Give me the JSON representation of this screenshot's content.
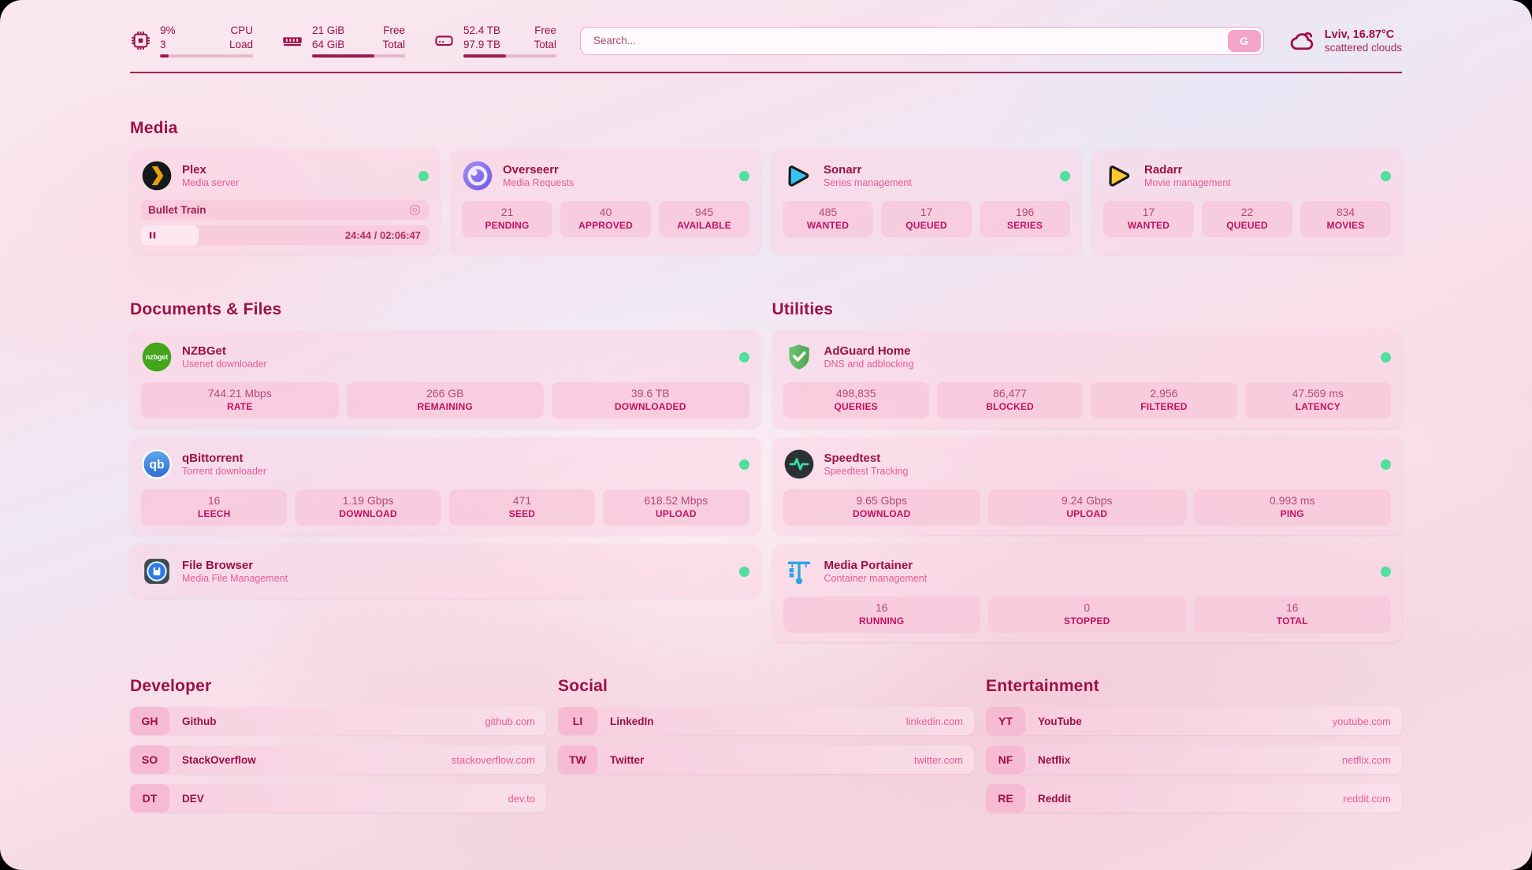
{
  "theme": {
    "accent_maroon": "#9b1048",
    "accent_pink": "#ea5c95",
    "status_online_green": "#4fdf9f",
    "card_pink": "#f9d6e5",
    "tile_pink": "#f7c6da"
  },
  "topbar": {
    "cpu": {
      "value_primary": "9%",
      "value_secondary": "3",
      "label_primary": "CPU",
      "label_secondary": "Load",
      "progress_pct": 9
    },
    "memory": {
      "value_primary": "21 GiB",
      "value_secondary": "64 GiB",
      "label_primary": "Free",
      "label_secondary": "Total",
      "progress_pct": 67
    },
    "disk": {
      "value_primary": "52.4 TB",
      "value_secondary": "97.9 TB",
      "label_primary": "Free",
      "label_secondary": "Total",
      "progress_pct": 46
    },
    "search": {
      "placeholder": "Search...",
      "engine_button": "G"
    },
    "weather": {
      "location_temp": "Lviv, 16.87°C",
      "condition": "scattered clouds"
    }
  },
  "sections": {
    "media": {
      "title": "Media",
      "cards": {
        "plex": {
          "name": "Plex",
          "subtitle": "Media server",
          "status": "online",
          "now_playing": {
            "title": "Bullet Train",
            "time": "24:44 / 02:06:47",
            "progress_pct": 20
          }
        },
        "overseerr": {
          "name": "Overseerr",
          "subtitle": "Media Requests",
          "status": "online",
          "stats": [
            {
              "value": "21",
              "label": "PENDING"
            },
            {
              "value": "40",
              "label": "APPROVED"
            },
            {
              "value": "945",
              "label": "AVAILABLE"
            }
          ]
        },
        "sonarr": {
          "name": "Sonarr",
          "subtitle": "Series management",
          "status": "online",
          "stats": [
            {
              "value": "485",
              "label": "WANTED"
            },
            {
              "value": "17",
              "label": "QUEUED"
            },
            {
              "value": "196",
              "label": "SERIES"
            }
          ]
        },
        "radarr": {
          "name": "Radarr",
          "subtitle": "Movie management",
          "status": "online",
          "stats": [
            {
              "value": "17",
              "label": "WANTED"
            },
            {
              "value": "22",
              "label": "QUEUED"
            },
            {
              "value": "834",
              "label": "MOVIES"
            }
          ]
        }
      }
    },
    "documents": {
      "title": "Documents & Files",
      "cards": {
        "nzbget": {
          "name": "NZBGet",
          "subtitle": "Usenet downloader",
          "status": "online",
          "stats": [
            {
              "value": "744.21 Mbps",
              "label": "RATE"
            },
            {
              "value": "266 GB",
              "label": "REMAINING"
            },
            {
              "value": "39.6 TB",
              "label": "DOWNLOADED"
            }
          ]
        },
        "qbittorrent": {
          "name": "qBittorrent",
          "subtitle": "Torrent downloader",
          "status": "online",
          "stats": [
            {
              "value": "16",
              "label": "LEECH"
            },
            {
              "value": "1.19 Gbps",
              "label": "DOWNLOAD"
            },
            {
              "value": "471",
              "label": "SEED"
            },
            {
              "value": "618.52 Mbps",
              "label": "UPLOAD"
            }
          ]
        },
        "filebrowser": {
          "name": "File Browser",
          "subtitle": "Media File Management",
          "status": "online"
        }
      }
    },
    "utilities": {
      "title": "Utilities",
      "cards": {
        "adguard": {
          "name": "AdGuard Home",
          "subtitle": "DNS and adblocking",
          "status": "online",
          "stats": [
            {
              "value": "498,835",
              "label": "QUERIES"
            },
            {
              "value": "86,477",
              "label": "BLOCKED"
            },
            {
              "value": "2,956",
              "label": "FILTERED"
            },
            {
              "value": "47.569 ms",
              "label": "LATENCY"
            }
          ]
        },
        "speedtest": {
          "name": "Speedtest",
          "subtitle": "Speedtest Tracking",
          "status": "online",
          "stats": [
            {
              "value": "9.65 Gbps",
              "label": "DOWNLOAD"
            },
            {
              "value": "9.24 Gbps",
              "label": "UPLOAD"
            },
            {
              "value": "0.993 ms",
              "label": "PING"
            }
          ]
        },
        "portainer": {
          "name": "Media Portainer",
          "subtitle": "Container management",
          "status": "online",
          "stats": [
            {
              "value": "16",
              "label": "RUNNING"
            },
            {
              "value": "0",
              "label": "STOPPED"
            },
            {
              "value": "16",
              "label": "TOTAL"
            }
          ]
        }
      }
    },
    "developer": {
      "title": "Developer",
      "links": [
        {
          "abbr": "GH",
          "name": "Github",
          "url": "github.com"
        },
        {
          "abbr": "SO",
          "name": "StackOverflow",
          "url": "stackoverflow.com"
        },
        {
          "abbr": "DT",
          "name": "DEV",
          "url": "dev.to"
        }
      ]
    },
    "social": {
      "title": "Social",
      "links": [
        {
          "abbr": "LI",
          "name": "LinkedIn",
          "url": "linkedin.com"
        },
        {
          "abbr": "TW",
          "name": "Twitter",
          "url": "twitter.com"
        }
      ]
    },
    "entertainment": {
      "title": "Entertainment",
      "links": [
        {
          "abbr": "YT",
          "name": "YouTube",
          "url": "youtube.com"
        },
        {
          "abbr": "NF",
          "name": "Netflix",
          "url": "netflix.com"
        },
        {
          "abbr": "RE",
          "name": "Reddit",
          "url": "reddit.com"
        }
      ]
    }
  }
}
